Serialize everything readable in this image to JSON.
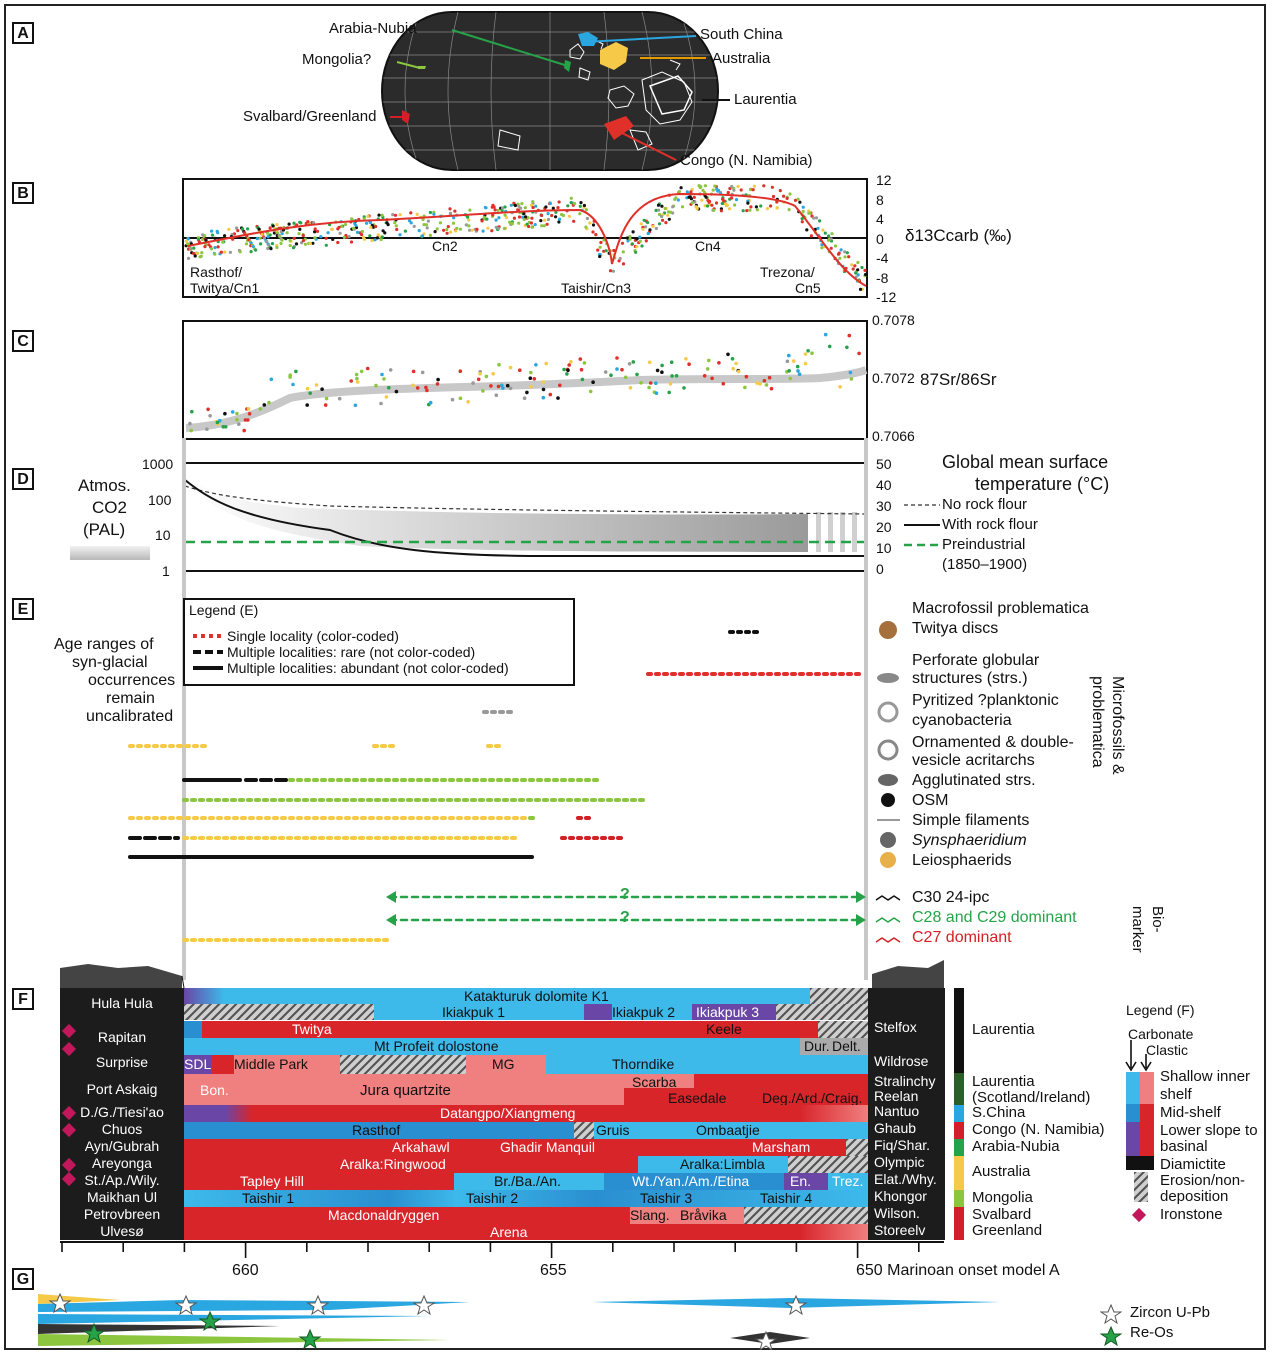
{
  "panels": [
    "A",
    "B",
    "C",
    "D",
    "E",
    "F",
    "G"
  ],
  "map": {
    "labels": [
      "Arabia-Nubia",
      "South China",
      "Mongolia?",
      "Australia",
      "Svalbard/Greenland",
      "Laurentia",
      "Congo (N. Namibia)"
    ],
    "colors": {
      "arabia": "#26a348",
      "china": "#2aa6e0",
      "mongolia": "#8cc63f",
      "australia": "#f7c948",
      "svalbard": "#d32027",
      "laurentia": "#111111",
      "congo": "#e0302a"
    }
  },
  "d13c": {
    "axis_label": "δ13Ccarb (‰)",
    "axis_ticks": [
      "12",
      "8",
      "4",
      "0",
      "-4",
      "-8",
      "-12"
    ],
    "events": [
      "Rasthof/",
      "Twitya/Cn1",
      "Cn2",
      "Taishir/Cn3",
      "Cn4",
      "Trezona/",
      "Cn5"
    ]
  },
  "sr": {
    "axis_label": "87Sr/86Sr",
    "axis_ticks": [
      "0.7078",
      "0.7072",
      "0.7066"
    ]
  },
  "co2": {
    "left_title": [
      "Atmos.",
      "CO2",
      "(PAL)"
    ],
    "left_ticks": [
      "1000",
      "100",
      "10",
      "1"
    ],
    "right_ticks": [
      "50",
      "40",
      "30",
      "20",
      "10",
      "0"
    ],
    "right_title": [
      "Global mean surface",
      "temperature (°C)"
    ],
    "legend": [
      "No rock flour",
      "With rock flour",
      "Preindustrial",
      "(1850–1900)"
    ]
  },
  "fossils": {
    "side_note": [
      "Age ranges of",
      "syn-glacial",
      "occurrences",
      "remain",
      "uncalibrated"
    ],
    "legend_title": "Legend (E)",
    "legend_items": [
      "Single locality (color-coded)",
      "Multiple localities: rare (not color-coded)",
      "Multiple localities: abundant (not color-coded)"
    ],
    "taxa": [
      "Macrofossil problematica",
      "Twitya discs",
      "Perforate globular",
      "structures (strs.)",
      "Pyritized ?planktonic",
      "cyanobacteria",
      "Ornamented & double-",
      "vesicle acritarchs",
      "Agglutinated strs.",
      "OSM",
      "Simple filaments",
      "Synsphaeridium",
      "Leiosphaerids"
    ],
    "group_label": [
      "Microfossils &",
      "problematica"
    ],
    "biomarkers": [
      "C30 24-ipc",
      "C28 and C29 dominant",
      "C27 dominant"
    ],
    "biomarker_label": [
      "Bio-",
      "marker"
    ],
    "q": "?"
  },
  "strat": {
    "rows": [
      {
        "name": "Hula Hula",
        "right": "",
        "units": [
          "Katakturuk dolomite K1",
          "Ikiakpuk 1",
          "Ikiakpuk 2",
          "Ikiakpuk 3"
        ]
      },
      {
        "name": "Rapitan",
        "right": "Stelfox",
        "units": [
          "Twitya",
          "Keele",
          "Dur.",
          "Delt."
        ]
      },
      {
        "name": "Surprise",
        "right": "Wildrose",
        "units": [
          "Mt Profeit dolostone",
          "SDL",
          "Middle Park",
          "MG",
          "Thorndike"
        ]
      },
      {
        "name": "Port Askaig",
        "right": "Stralinchy\nReelan",
        "units": [
          "Bon.",
          "Jura quartzite",
          "Scarba",
          "Easedale",
          "Deg./Ard./Craig."
        ]
      },
      {
        "name": "D./G./Tiesi'ao",
        "right": "Nantuo",
        "units": [
          "Datangpo/Xiangmeng"
        ]
      },
      {
        "name": "Chuos",
        "right": "Ghaub",
        "units": [
          "Rasthof",
          "Gruis",
          "Ombaatjie"
        ]
      },
      {
        "name": "Ayn/Gubrah",
        "right": "Fiq/Shar.",
        "units": [
          "Arkahawl",
          "Ghadir Manquil",
          "Marsham"
        ]
      },
      {
        "name": "Areyonga",
        "right": "Olympic",
        "units": [
          "Aralka:Ringwood",
          "Aralka:Limbla"
        ]
      },
      {
        "name": "St./Ap./Wily.",
        "right": "Elat./Why.",
        "units": [
          "Tapley Hill",
          "Br./Ba./An.",
          "Wt./Yan./Am./Etina",
          "En.",
          "Trez."
        ]
      },
      {
        "name": "Maikhan Ul",
        "right": "Khongor",
        "units": [
          "Taishir 1",
          "Taishir 2",
          "Taishir 3",
          "Taishir 4"
        ]
      },
      {
        "name": "Petrovbreen",
        "right": "Wilson.",
        "units": [
          "Macdonaldryggen",
          "Slang.",
          "Bråvika"
        ]
      },
      {
        "name": "Ulvesø",
        "right": "Storeelv",
        "units": [
          "Arena"
        ]
      }
    ],
    "regions": [
      "Laurentia",
      "Laurentia\n(Scotland/Ireland)",
      "S.China",
      "Congo (N. Namibia)",
      "Arabia-Nubia",
      "Australia",
      "Mongolia",
      "Svalbard\nGreenland"
    ],
    "legend_title": "Legend (F)",
    "legend_items": [
      "Carbonate",
      "Clastic",
      "Shallow inner",
      "shelf",
      "Mid-shelf",
      "Lower slope to",
      "basinal",
      "Diamictite",
      "Erosion/non-",
      "deposition",
      "Ironstone"
    ],
    "axis_ticks": [
      "660",
      "655",
      "650 Marinoan onset model A"
    ]
  },
  "geochron": {
    "legend": [
      "Zircon U-Pb",
      "Re-Os"
    ]
  }
}
